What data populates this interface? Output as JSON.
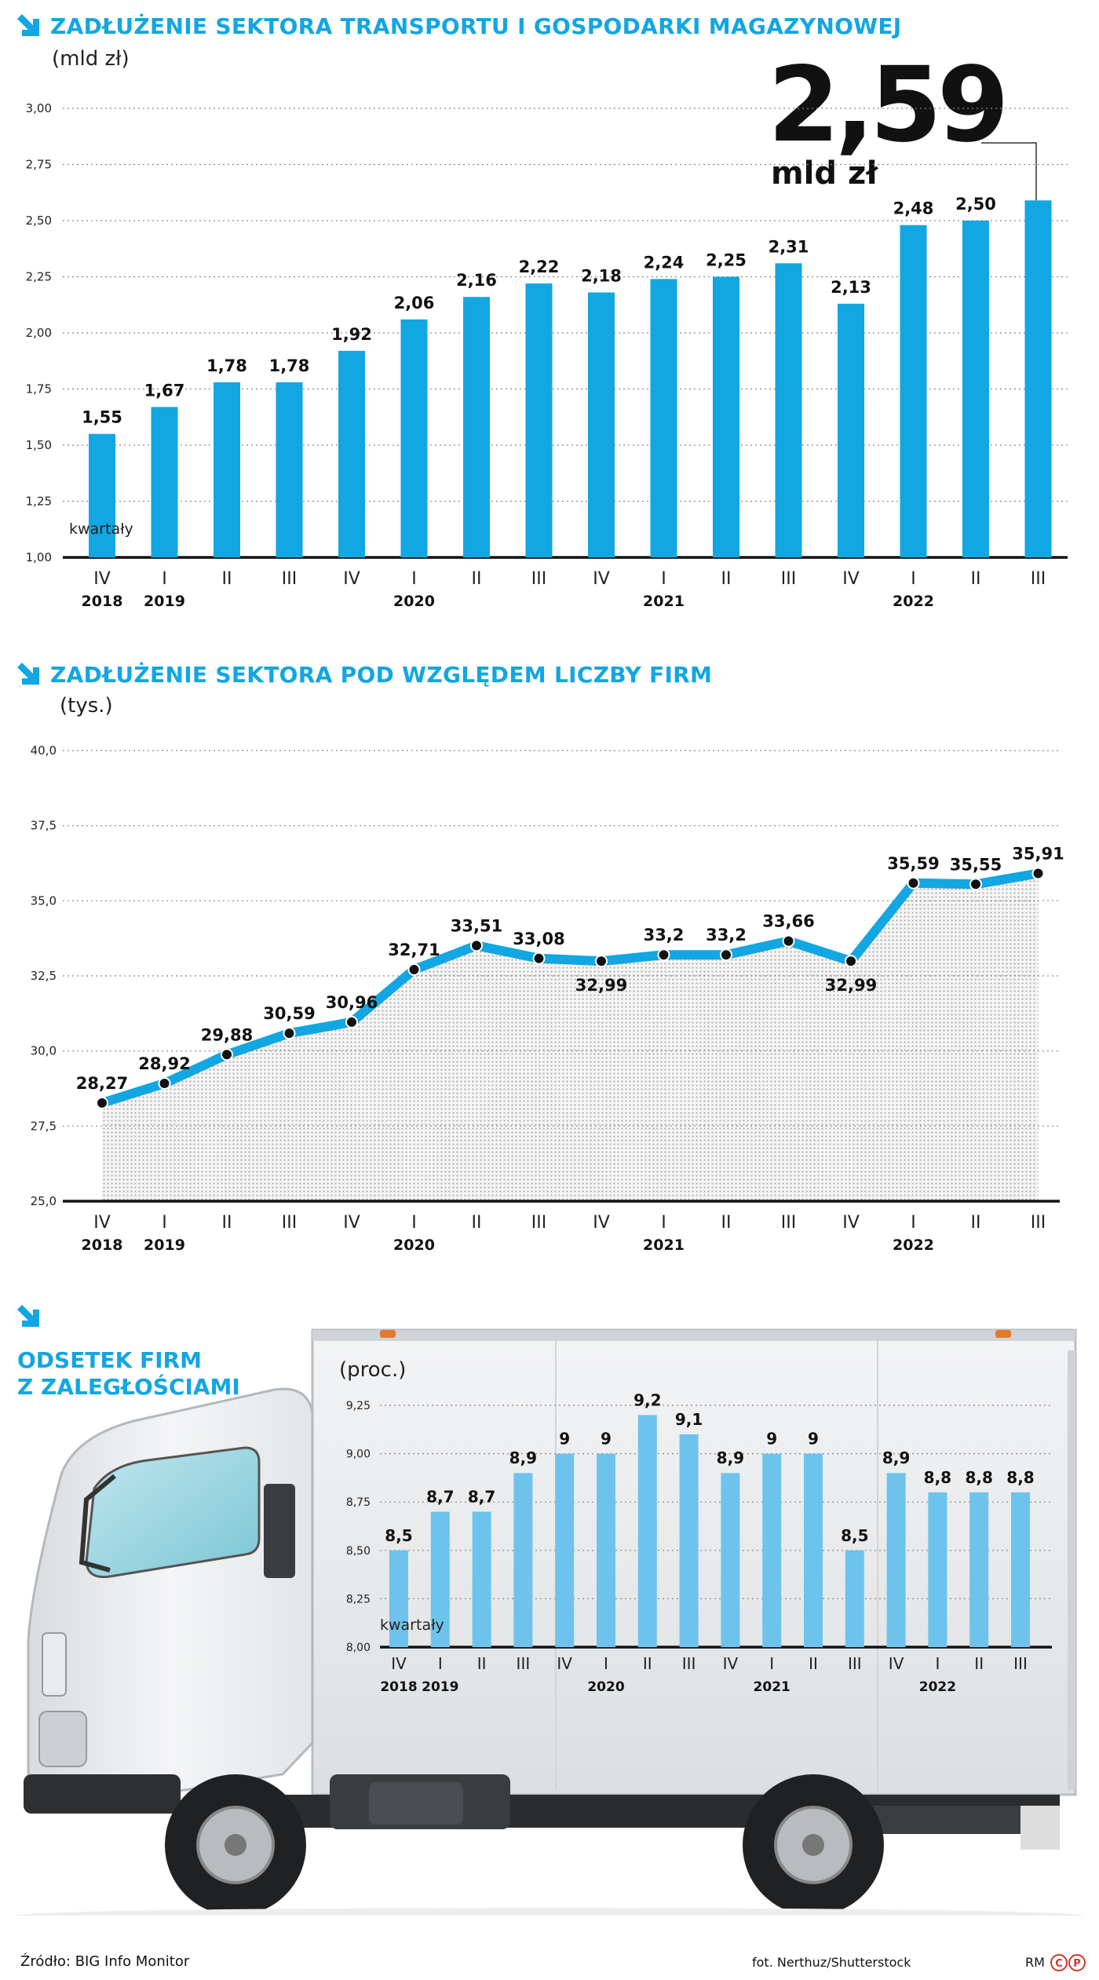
{
  "header1": {
    "title": "ZADŁUŻENIE SEKTORA TRANSPORTU I GOSPODARKI MAGAZYNOWEJ",
    "unit": "(mld zł)"
  },
  "highlight": {
    "value": "2,59",
    "unit": "mld zł"
  },
  "header2": {
    "title": "ZADŁUŻENIE SEKTORA POD WZGLĘDEM LICZBY FIRM",
    "unit": "(tys.)"
  },
  "header3": {
    "title_line1": "ODSETEK FIRM",
    "title_line2": "Z ZALEGŁOŚCIAMI",
    "unit": "(proc.)"
  },
  "footer": {
    "source": "Źródło: BIG Info Monitor",
    "photo": "fot. Nerthuz/Shutterstock",
    "author": "RM"
  },
  "colors": {
    "accent": "#12a6e2",
    "bar_light": "#6ec3ec",
    "dark": "#111111"
  },
  "icons": [
    "arrow-down-right-icon",
    "truck-image",
    "cp-logo-icon"
  ],
  "chart_data": [
    {
      "type": "bar",
      "title": "ZADŁUŻENIE SEKTORA TRANSPORTU I GOSPODARKI MAGAZYNOWEJ",
      "ylabel": "(mld zł)",
      "xlabel": "kwartały",
      "ylim": [
        1.0,
        3.0
      ],
      "yticks": [
        "1,00",
        "1,25",
        "1,50",
        "1,75",
        "2,00",
        "2,25",
        "2,50",
        "2,75",
        "3,00"
      ],
      "categories": [
        "IV",
        "I",
        "II",
        "III",
        "IV",
        "I",
        "II",
        "III",
        "IV",
        "I",
        "II",
        "III",
        "IV",
        "I",
        "II",
        "III"
      ],
      "years": [
        {
          "label": "2018",
          "index": 0
        },
        {
          "label": "2019",
          "index": 1
        },
        {
          "label": "2020",
          "index": 5
        },
        {
          "label": "2021",
          "index": 9
        },
        {
          "label": "2022",
          "index": 13
        }
      ],
      "values": [
        1.55,
        1.67,
        1.78,
        1.78,
        1.92,
        2.06,
        2.16,
        2.22,
        2.18,
        2.24,
        2.25,
        2.31,
        2.13,
        2.48,
        2.5,
        2.59
      ],
      "labels": [
        "1,55",
        "1,67",
        "1,78",
        "1,78",
        "1,92",
        "2,06",
        "2,16",
        "2,22",
        "2,18",
        "2,24",
        "2,25",
        "2,31",
        "2,13",
        "2,48",
        "2,50",
        ""
      ]
    },
    {
      "type": "line",
      "title": "ZADŁUŻENIE SEKTORA POD WZGLĘDEM LICZBY FIRM",
      "ylabel": "(tys.)",
      "ylim": [
        25.0,
        40.0
      ],
      "yticks": [
        "25,0",
        "27,5",
        "30,0",
        "32,5",
        "35,0",
        "37,5",
        "40,0"
      ],
      "categories": [
        "IV",
        "I",
        "II",
        "III",
        "IV",
        "I",
        "II",
        "III",
        "IV",
        "I",
        "II",
        "III",
        "IV",
        "I",
        "II",
        "III"
      ],
      "years": [
        {
          "label": "2018",
          "index": 0
        },
        {
          "label": "2019",
          "index": 1
        },
        {
          "label": "2020",
          "index": 5
        },
        {
          "label": "2021",
          "index": 9
        },
        {
          "label": "2022",
          "index": 13
        }
      ],
      "values": [
        28.27,
        28.92,
        29.88,
        30.59,
        30.96,
        32.71,
        33.51,
        33.08,
        32.99,
        33.2,
        33.2,
        33.66,
        32.99,
        35.59,
        35.55,
        35.91
      ],
      "labels": [
        "28,27",
        "28,92",
        "29,88",
        "30,59",
        "30,96",
        "32,71",
        "33,51",
        "33,08",
        "32,99",
        "33,2",
        "33,2",
        "33,66",
        "32,99",
        "35,59",
        "35,55",
        "35,91"
      ],
      "label_below": [
        false,
        false,
        false,
        false,
        false,
        false,
        false,
        false,
        true,
        false,
        false,
        false,
        true,
        false,
        false,
        false
      ]
    },
    {
      "type": "bar",
      "title": "ODSETEK FIRM Z ZALEGŁOŚCIAMI",
      "ylabel": "(proc.)",
      "xlabel": "kwartały",
      "ylim": [
        8.0,
        9.25
      ],
      "yticks": [
        "8,00",
        "8,25",
        "8,50",
        "8,75",
        "9,00",
        "9,25"
      ],
      "categories": [
        "IV",
        "I",
        "II",
        "III",
        "IV",
        "I",
        "II",
        "III",
        "IV",
        "I",
        "II",
        "III",
        "IV",
        "I",
        "II",
        "III"
      ],
      "years": [
        {
          "label": "2018",
          "index": 0
        },
        {
          "label": "2019",
          "index": 1
        },
        {
          "label": "2020",
          "index": 5
        },
        {
          "label": "2021",
          "index": 9
        },
        {
          "label": "2022",
          "index": 13
        }
      ],
      "values": [
        8.5,
        8.7,
        8.7,
        8.9,
        9.0,
        9.0,
        9.2,
        9.1,
        8.9,
        9.0,
        9.0,
        8.5,
        8.9,
        8.8,
        8.8,
        8.8
      ],
      "labels": [
        "8,5",
        "8,7",
        "8,7",
        "8,9",
        "9",
        "9",
        "9,2",
        "9,1",
        "8,9",
        "9",
        "9",
        "8,5",
        "8,9",
        "8,8",
        "8,8",
        "8,8"
      ]
    }
  ]
}
